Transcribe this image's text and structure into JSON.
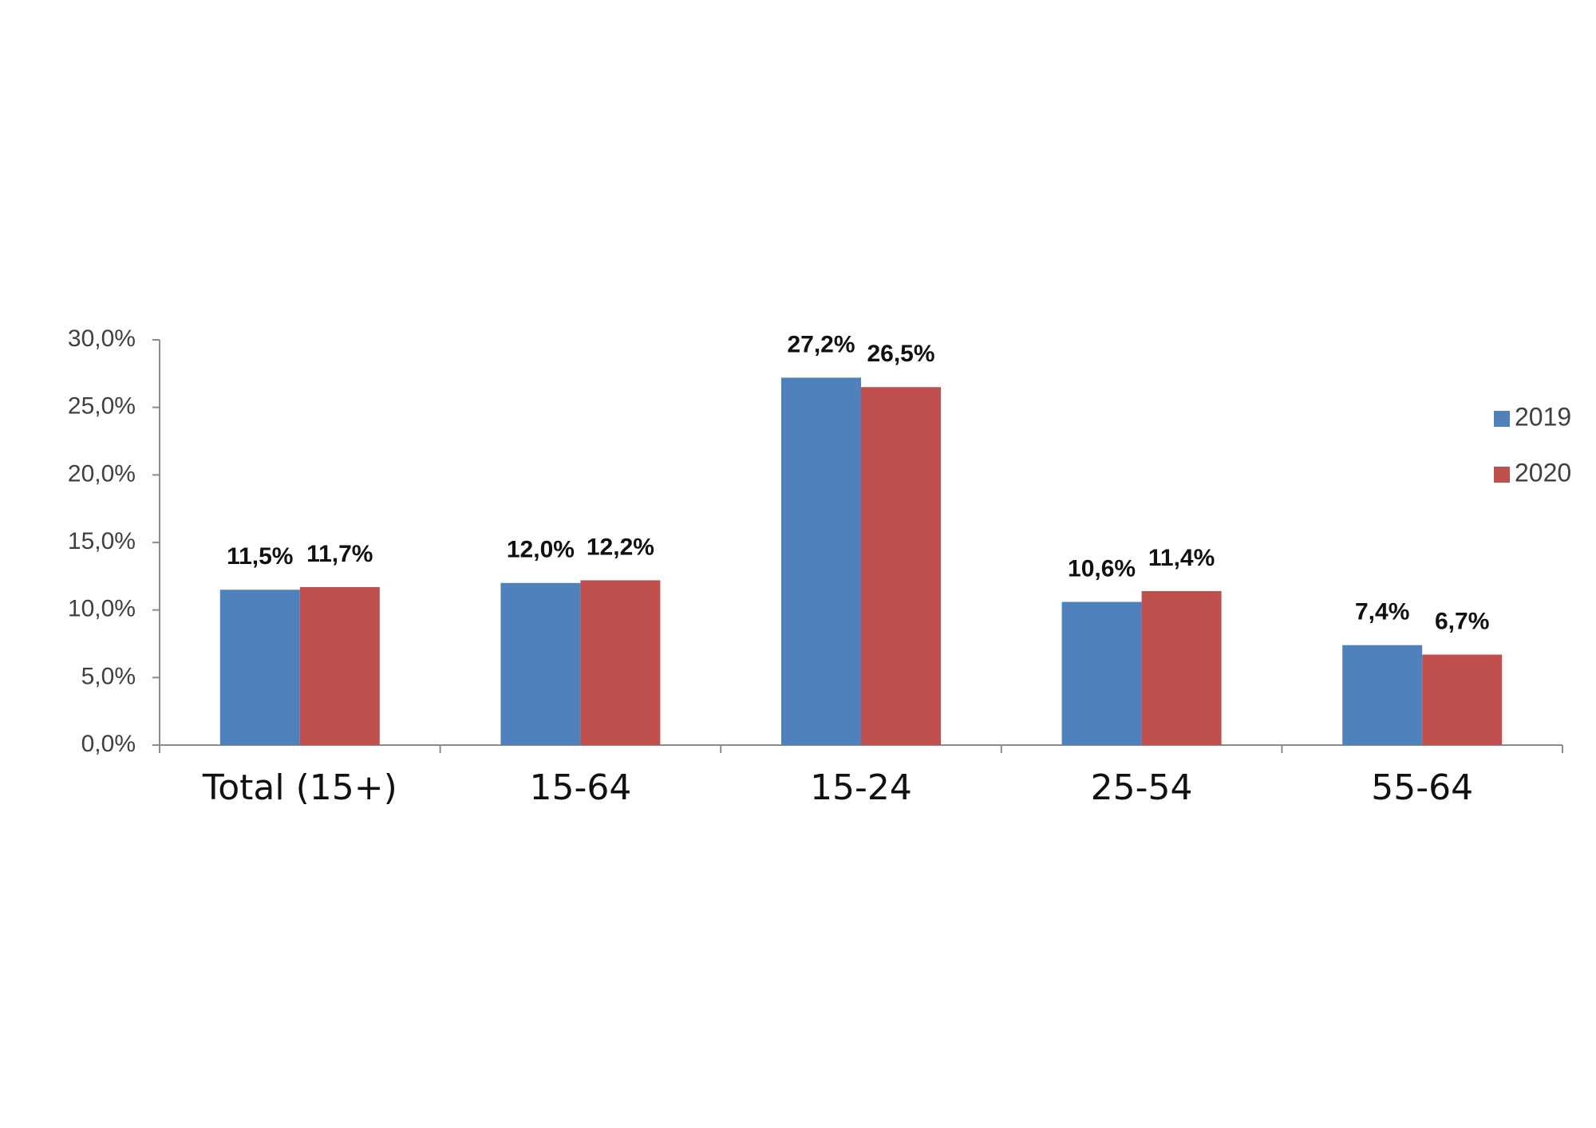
{
  "chart_data": {
    "type": "bar",
    "categories": [
      "Total (15+)",
      "15-64",
      "15-24",
      "25-54",
      "55-64"
    ],
    "series": [
      {
        "name": "2019",
        "color": "#4f81bd",
        "values": [
          11.5,
          12.0,
          27.2,
          10.6,
          7.4
        ],
        "value_labels": [
          "11,5%",
          "12,0%",
          "27,2%",
          "10,6%",
          "7,4%"
        ]
      },
      {
        "name": "2020",
        "color": "#c0504d",
        "values": [
          11.7,
          12.2,
          26.5,
          11.4,
          6.7
        ],
        "value_labels": [
          "11,7%",
          "12,2%",
          "26,5%",
          "11,4%",
          "6,7%"
        ]
      }
    ],
    "ylim": [
      0,
      30
    ],
    "yticks": [
      {
        "value": 0,
        "label": "0,0%"
      },
      {
        "value": 5,
        "label": "5,0%"
      },
      {
        "value": 10,
        "label": "10,0%"
      },
      {
        "value": 15,
        "label": "15,0%"
      },
      {
        "value": 20,
        "label": "20,0%"
      },
      {
        "value": 25,
        "label": "25,0%"
      },
      {
        "value": 30,
        "label": "30,0%"
      }
    ],
    "legend": "right"
  }
}
